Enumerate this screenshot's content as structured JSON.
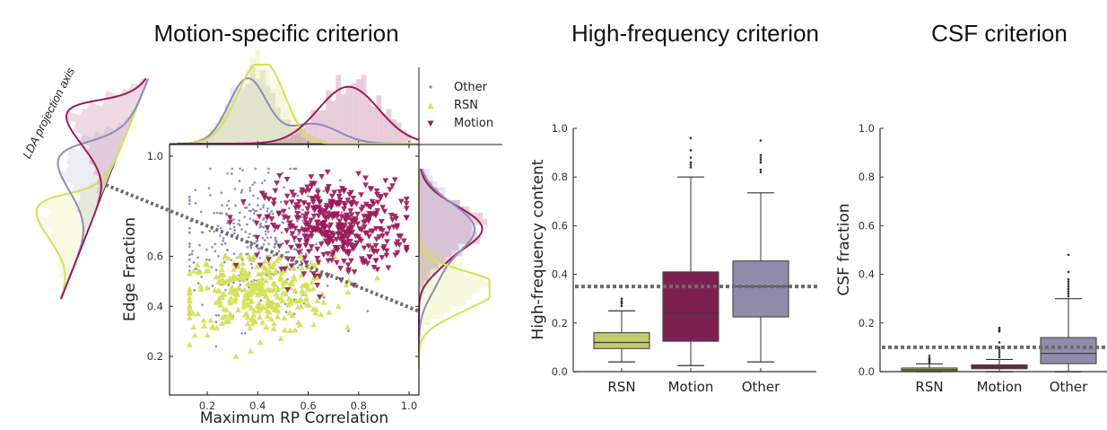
{
  "colors": {
    "rsn": "#d4e157",
    "rsn_box": "#c2cc6a",
    "motion": "#9b1b5a",
    "motion_box": "#7d2050",
    "other": "#8e8cb8",
    "other_box": "#908bab",
    "threshold": "#6b6b6b"
  },
  "chart_data": [
    {
      "id": "motion",
      "type": "scatter",
      "title": "Motion-specific criterion",
      "xlabel": "Maximum RP Correlation",
      "ylabel": "Edge Fraction",
      "xlim": [
        0.05,
        1.04
      ],
      "ylim": [
        0.1,
        1.05
      ],
      "xticks": [
        "0.2",
        "0.4",
        "0.6",
        "0.8",
        "1.0"
      ],
      "xtick_values": [
        0.2,
        0.4,
        0.6,
        0.8,
        1.0
      ],
      "yticks": [
        "0.2",
        "0.4",
        "0.6",
        "1.0"
      ],
      "ytick_values": [
        0.2,
        0.4,
        0.6,
        1.0
      ],
      "grid": false,
      "legend": {
        "placement": "top-right",
        "entries": [
          "Other",
          "RSN",
          "Motion"
        ]
      },
      "annotation": "LDA projection axis",
      "decision_boundary": {
        "style": "dotted",
        "points": [
          [
            0.0,
            0.8
          ],
          [
            1.04,
            0.38
          ]
        ]
      },
      "series": [
        {
          "name": "Other",
          "marker": "dot",
          "count": 380,
          "x_center": 0.4,
          "x_spread": 0.16,
          "y_center": 0.66,
          "y_spread": 0.14
        },
        {
          "name": "RSN",
          "marker": "triangle-up",
          "count": 330,
          "x_center": 0.4,
          "x_spread": 0.15,
          "y_center": 0.45,
          "y_spread": 0.08
        },
        {
          "name": "Motion",
          "marker": "triangle-down",
          "count": 420,
          "x_center": 0.71,
          "x_spread": 0.14,
          "y_center": 0.72,
          "y_spread": 0.09
        }
      ],
      "marginals": {
        "top": [
          {
            "name": "Other",
            "peak_x": 0.37,
            "peak_density": 0.82
          },
          {
            "name": "RSN",
            "peak_x": 0.4,
            "peak_density": 0.96
          },
          {
            "name": "Motion",
            "peak_x": 0.76,
            "peak_density": 0.72
          }
        ],
        "right": [
          {
            "name": "Motion",
            "peak_y": 0.7,
            "peak_density": 0.94
          },
          {
            "name": "Other",
            "peak_y": 0.71,
            "peak_density": 0.83
          },
          {
            "name": "RSN",
            "peak_y": 0.48,
            "peak_density": 1.0
          }
        ]
      }
    },
    {
      "id": "highfreq",
      "type": "box",
      "title": "High-frequency criterion",
      "xlabel": "",
      "ylabel": "High-frequency content",
      "categories": [
        "RSN",
        "Motion",
        "Other"
      ],
      "ylim": [
        0.0,
        1.0
      ],
      "yticks": [
        "0.0",
        "0.2",
        "0.4",
        "0.6",
        "0.8",
        "1.0"
      ],
      "threshold": 0.35,
      "grid": false,
      "boxes": [
        {
          "category": "RSN",
          "whisker_low": 0.04,
          "q1": 0.095,
          "median": 0.12,
          "q3": 0.16,
          "whisker_high": 0.25,
          "outliers": [
            0.27,
            0.28,
            0.285,
            0.29,
            0.3
          ]
        },
        {
          "category": "Motion",
          "whisker_low": 0.025,
          "q1": 0.125,
          "median": 0.24,
          "q3": 0.41,
          "whisker_high": 0.8,
          "outliers": [
            0.84,
            0.85,
            0.86,
            0.88,
            0.91,
            0.96
          ]
        },
        {
          "category": "Other",
          "whisker_low": 0.04,
          "q1": 0.225,
          "median": 0.35,
          "q3": 0.455,
          "whisker_high": 0.735,
          "outliers": [
            0.82,
            0.83,
            0.86,
            0.87,
            0.88,
            0.89,
            0.95
          ]
        }
      ]
    },
    {
      "id": "csf",
      "type": "box",
      "title": "CSF criterion",
      "xlabel": "",
      "ylabel": "CSF fraction",
      "categories": [
        "RSN",
        "Motion",
        "Other"
      ],
      "ylim": [
        0.0,
        1.0
      ],
      "yticks": [
        "0.0",
        "0.2",
        "0.4",
        "0.6",
        "0.8",
        "1.0"
      ],
      "threshold": 0.1,
      "grid": false,
      "boxes": [
        {
          "category": "RSN",
          "whisker_low": 0.0,
          "q1": 0.003,
          "median": 0.008,
          "q3": 0.015,
          "whisker_high": 0.032,
          "outliers": [
            0.038,
            0.045,
            0.05,
            0.055,
            0.065
          ]
        },
        {
          "category": "Motion",
          "whisker_low": 0.0,
          "q1": 0.012,
          "median": 0.018,
          "q3": 0.028,
          "whisker_high": 0.05,
          "outliers": [
            0.06,
            0.07,
            0.08,
            0.09,
            0.1,
            0.12,
            0.165,
            0.17,
            0.175,
            0.18
          ]
        },
        {
          "category": "Other",
          "whisker_low": 0.0,
          "q1": 0.033,
          "median": 0.075,
          "q3": 0.14,
          "whisker_high": 0.3,
          "outliers": [
            0.31,
            0.32,
            0.33,
            0.34,
            0.35,
            0.36,
            0.37,
            0.38,
            0.41,
            0.48
          ]
        }
      ]
    }
  ]
}
